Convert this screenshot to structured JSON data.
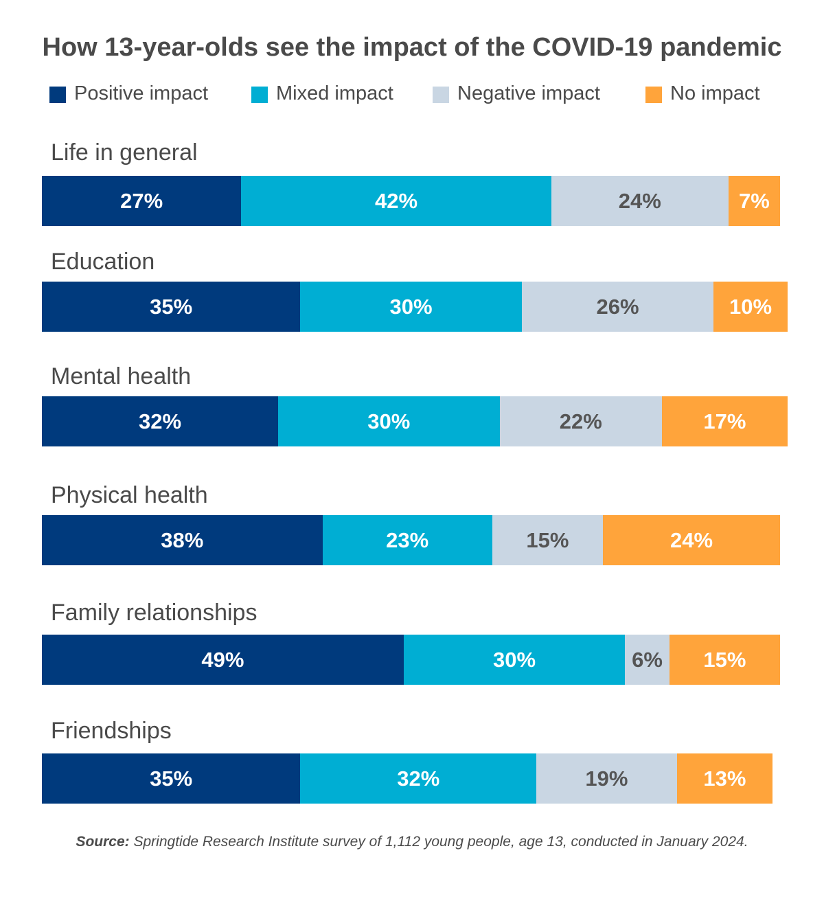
{
  "chart_data": {
    "type": "bar",
    "orientation": "horizontal",
    "stacked": true,
    "title": "How 13-year-olds see the impact of the COVID-19 pandemic",
    "legend_placement": "top",
    "categories": [
      "Life in general",
      "Education",
      "Mental health",
      "Physical health",
      "Family relationships",
      "Friendships"
    ],
    "series": [
      {
        "name": "Positive impact",
        "color": "#003a7d",
        "text_color": "#ffffff",
        "values": [
          27,
          35,
          32,
          38,
          49,
          35
        ]
      },
      {
        "name": "Mixed impact",
        "color": "#00aed3",
        "text_color": "#ffffff",
        "values": [
          42,
          30,
          30,
          23,
          30,
          32
        ]
      },
      {
        "name": "Negative impact",
        "color": "#c9d6e3",
        "text_color": "#555555",
        "values": [
          24,
          26,
          22,
          15,
          6,
          19
        ]
      },
      {
        "name": "No impact",
        "color": "#ffa43b",
        "text_color": "#ffffff",
        "values": [
          7,
          10,
          17,
          24,
          15,
          13
        ]
      }
    ],
    "value_suffix": "%"
  },
  "source": {
    "label": "Source:",
    "text": "Springtide Research Institute survey of 1,112 young people, age 13, conducted in January 2024."
  }
}
